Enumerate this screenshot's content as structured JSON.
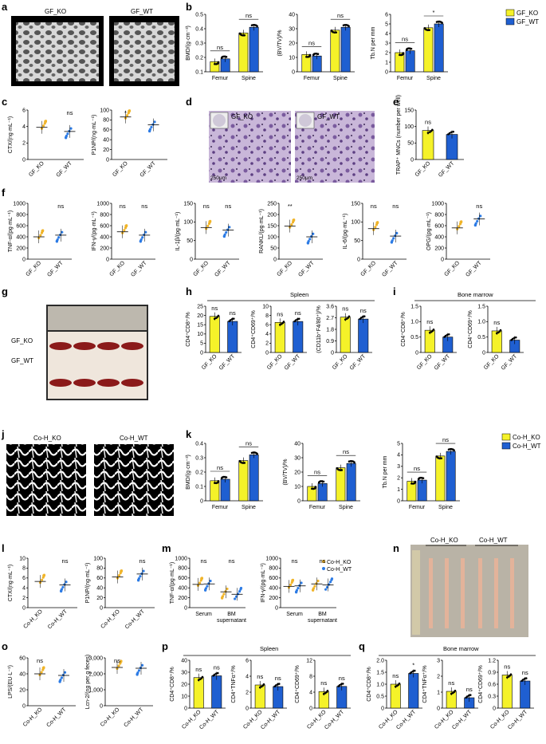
{
  "colors": {
    "ko": "#f5f229",
    "wt": "#1f5fd1",
    "ko_dot": "#f0b429",
    "wt_dot": "#2c7be5"
  },
  "panels": {
    "a": "a",
    "b": "b",
    "c": "c",
    "d": "d",
    "e": "e",
    "f": "f",
    "g": "g",
    "h": "h",
    "i": "i",
    "j": "j",
    "k": "k",
    "l": "l",
    "m": "m",
    "n": "n",
    "o": "o",
    "p": "p",
    "q": "q"
  },
  "images": {
    "a_left": "GF_KO",
    "a_right": "GF_WT",
    "d_left": "GF_KO",
    "d_right": "GF_WT",
    "d_scale_left": "250μm",
    "d_scale_right": "250μm",
    "g_row1": "GF_KO",
    "g_row2": "GF_WT",
    "j_left": "Co-H_KO",
    "j_right": "Co-H_WT",
    "n_left": "Co-H_KO",
    "n_right": "Co-H_WT"
  },
  "legends": {
    "b": [
      "GF_KO",
      "GF_WT"
    ],
    "k": [
      "Co-H_KO",
      "Co-H_WT"
    ],
    "m": [
      "Co-H_KO",
      "Co-H_WT"
    ]
  },
  "section_titles": {
    "h": "Spleen",
    "i": "Bone marrow",
    "p": "Spleen",
    "q": "Bone marrow"
  },
  "chart_data": [
    {
      "id": "b1",
      "type": "bar",
      "ylabel": "BMD/(g·cm⁻³)",
      "categories": [
        "Femur",
        "Spine"
      ],
      "ylim": [
        0.1,
        0.5
      ],
      "yticks": [
        "0.1",
        "0.2",
        "0.3",
        "0.4",
        "0.5"
      ],
      "series": [
        {
          "name": "GF_KO",
          "values": [
            0.17,
            0.37
          ]
        },
        {
          "name": "GF_WT",
          "values": [
            0.19,
            0.41
          ]
        }
      ],
      "sig": [
        "ns",
        "ns"
      ]
    },
    {
      "id": "b2",
      "type": "bar",
      "ylabel": "(BV/TV)/%",
      "categories": [
        "Femur",
        "Spine"
      ],
      "ylim": [
        0,
        40
      ],
      "yticks": [
        "0",
        "10",
        "20",
        "30",
        "40"
      ],
      "series": [
        {
          "name": "GF_KO",
          "values": [
            12,
            29
          ]
        },
        {
          "name": "GF_WT",
          "values": [
            11,
            31
          ]
        }
      ],
      "sig": [
        "ns",
        "ns"
      ]
    },
    {
      "id": "b3",
      "type": "bar",
      "ylabel": "Tb.N per mm",
      "categories": [
        "Femur",
        "Spine"
      ],
      "ylim": [
        0,
        6
      ],
      "yticks": [
        "0",
        "1",
        "2",
        "3",
        "4",
        "5",
        "6"
      ],
      "series": [
        {
          "name": "GF_KO",
          "values": [
            2.0,
            4.6
          ]
        },
        {
          "name": "GF_WT",
          "values": [
            2.2,
            5.0
          ]
        }
      ],
      "sig": [
        "ns",
        "*"
      ]
    },
    {
      "id": "c1",
      "type": "scatter",
      "ylabel": "CTX/(ng·mL⁻¹)",
      "categories": [
        "GF_KO",
        "GF_WT"
      ],
      "ylim": [
        0,
        6
      ],
      "yticks": [
        "0",
        "2",
        "4",
        "6"
      ],
      "means": [
        3.9,
        3.4
      ],
      "sig": [
        "",
        "ns"
      ]
    },
    {
      "id": "c2",
      "type": "scatter",
      "ylabel": "P1NP/(ng·mL⁻¹)",
      "categories": [
        "GF_KO",
        "GF_WT"
      ],
      "ylim": [
        0,
        100
      ],
      "yticks": [
        "0",
        "20",
        "40",
        "60",
        "80",
        "100"
      ],
      "means": [
        86,
        70
      ],
      "sig": [
        "*",
        ""
      ]
    },
    {
      "id": "e1",
      "type": "bar",
      "ylabel": "TRAP⁺ MNCs (number per well)",
      "categories": [
        "GF_KO",
        "GF_WT"
      ],
      "ylim": [
        0,
        150
      ],
      "yticks": [
        "0",
        "50",
        "100",
        "150"
      ],
      "values": [
        88,
        76
      ],
      "sig": [
        "ns",
        ""
      ]
    },
    {
      "id": "f1",
      "type": "scatter",
      "ylabel": "TNF-α/(pg·mL⁻¹)",
      "categories": [
        "GF_KO",
        "GF_WT"
      ],
      "ylim": [
        0,
        1000
      ],
      "yticks": [
        "0",
        "200",
        "400",
        "600",
        "800",
        "1000"
      ],
      "means": [
        400,
        430
      ],
      "sig": [
        "",
        "ns"
      ]
    },
    {
      "id": "f2",
      "type": "scatter",
      "ylabel": "IFN-γ/(pg·mL⁻¹)",
      "categories": [
        "GF_KO",
        "GF_WT"
      ],
      "ylim": [
        0,
        1000
      ],
      "yticks": [
        "0",
        "200",
        "400",
        "600",
        "800",
        "1000"
      ],
      "means": [
        490,
        430
      ],
      "sig": [
        "ns",
        "ns"
      ]
    },
    {
      "id": "f3",
      "type": "scatter",
      "ylabel": "IL-1β/(pg·mL⁻¹)",
      "categories": [
        "GF_KO",
        "GF_WT"
      ],
      "ylim": [
        0,
        150
      ],
      "yticks": [
        "0",
        "50",
        "100",
        "150"
      ],
      "means": [
        85,
        78
      ],
      "sig": [
        "ns",
        "ns"
      ]
    },
    {
      "id": "f4",
      "type": "scatter",
      "ylabel": "RANKL/(pg·mL⁻¹)",
      "categories": [
        "GF_KO",
        "GF_WT"
      ],
      "ylim": [
        0,
        250
      ],
      "yticks": [
        "0",
        "50",
        "100",
        "150",
        "200",
        "250"
      ],
      "means": [
        148,
        100
      ],
      "sig": [
        "**",
        ""
      ]
    },
    {
      "id": "f5",
      "type": "scatter",
      "ylabel": "IL-6/(pg·mL⁻¹)",
      "categories": [
        "GF_KO",
        "GF_WT"
      ],
      "ylim": [
        0,
        150
      ],
      "yticks": [
        "0",
        "50",
        "100",
        "150"
      ],
      "means": [
        82,
        62
      ],
      "sig": [
        "ns",
        "ns"
      ]
    },
    {
      "id": "f6",
      "type": "scatter",
      "ylabel": "OPG/(pg·mL⁻¹)",
      "categories": [
        "GF_KO",
        "GF_WT"
      ],
      "ylim": [
        0,
        1000
      ],
      "yticks": [
        "0",
        "200",
        "400",
        "600",
        "800",
        "1000"
      ],
      "means": [
        560,
        720
      ],
      "sig": [
        "",
        "ns"
      ]
    },
    {
      "id": "h1",
      "type": "bar",
      "ylabel": "CD4⁺CD8⁺/%",
      "categories": [
        "GF_KO",
        "GF_WT"
      ],
      "ylim": [
        0,
        25
      ],
      "yticks": [
        "0",
        "5",
        "10",
        "15",
        "20",
        "25"
      ],
      "values": [
        19.5,
        16.8
      ],
      "sig": [
        "ns",
        "ns"
      ]
    },
    {
      "id": "h2",
      "type": "bar",
      "ylabel": "CD4⁺CD69⁺/%",
      "categories": [
        "GF_KO",
        "GF_WT"
      ],
      "ylim": [
        0,
        10
      ],
      "yticks": [
        "0",
        "2",
        "4",
        "6",
        "8",
        "10"
      ],
      "values": [
        6.5,
        6.7
      ],
      "sig": [
        "ns",
        "ns"
      ]
    },
    {
      "id": "h3",
      "type": "bar",
      "ylabel": "(CD11b⁺F4/80⁺)/%",
      "categories": [
        "GF_KO",
        "GF_WT"
      ],
      "ylim": [
        0,
        3.6
      ],
      "yticks": [
        "0",
        "0.9",
        "1.8",
        "2.7",
        "3.6"
      ],
      "values": [
        2.75,
        2.6
      ],
      "sig": [
        "ns",
        "ns"
      ]
    },
    {
      "id": "i1",
      "type": "bar",
      "ylabel": "CD4⁺CD8⁺/%",
      "categories": [
        "GF_KO",
        "GF_WT"
      ],
      "ylim": [
        0,
        1.5
      ],
      "yticks": [
        "0",
        "0.5",
        "1.0",
        "1.5"
      ],
      "values": [
        0.72,
        0.5
      ],
      "sig": [
        "ns",
        ""
      ]
    },
    {
      "id": "i2",
      "type": "bar",
      "ylabel": "CD4⁺CD69⁺/%",
      "categories": [
        "GF_KO",
        "GF_WT"
      ],
      "ylim": [
        0,
        1.5
      ],
      "yticks": [
        "0",
        "0.5",
        "1.0",
        "1.5"
      ],
      "values": [
        0.7,
        0.4
      ],
      "sig": [
        "ns",
        ""
      ]
    },
    {
      "id": "k1",
      "type": "bar",
      "ylabel": "BMD/(g·cm⁻³)",
      "categories": [
        "Femur",
        "Spine"
      ],
      "ylim": [
        0,
        0.4
      ],
      "yticks": [
        "0",
        "0.1",
        "0.2",
        "0.3",
        "0.4"
      ],
      "series": [
        {
          "name": "Co-H_KO",
          "values": [
            0.14,
            0.28
          ]
        },
        {
          "name": "Co-H_WT",
          "values": [
            0.15,
            0.32
          ]
        }
      ],
      "sig": [
        "ns",
        "ns"
      ]
    },
    {
      "id": "k2",
      "type": "bar",
      "ylabel": "(BV/TV)/%",
      "categories": [
        "Femur",
        "Spine"
      ],
      "ylim": [
        0,
        40
      ],
      "yticks": [
        "0",
        "10",
        "20",
        "30",
        "40"
      ],
      "series": [
        {
          "name": "Co-H_KO",
          "values": [
            10,
            23
          ]
        },
        {
          "name": "Co-H_WT",
          "values": [
            12,
            26
          ]
        }
      ],
      "sig": [
        "ns",
        "ns"
      ]
    },
    {
      "id": "k3",
      "type": "bar",
      "ylabel": "Tb.N per mm",
      "categories": [
        "Femur",
        "Spine"
      ],
      "ylim": [
        0,
        5
      ],
      "yticks": [
        "0",
        "1",
        "2",
        "3",
        "4",
        "5"
      ],
      "series": [
        {
          "name": "Co-H_KO",
          "values": [
            1.7,
            3.9
          ]
        },
        {
          "name": "Co-H_WT",
          "values": [
            1.8,
            4.3
          ]
        }
      ],
      "sig": [
        "ns",
        "ns"
      ]
    },
    {
      "id": "l1",
      "type": "scatter",
      "ylabel": "CTX/(ng·mL⁻¹)",
      "categories": [
        "Co-H_KO",
        "Co-H_WT"
      ],
      "ylim": [
        0,
        10
      ],
      "yticks": [
        "0",
        "2",
        "4",
        "6",
        "8",
        "10"
      ],
      "means": [
        5.3,
        4.6
      ],
      "sig": [
        "",
        "ns"
      ]
    },
    {
      "id": "l2",
      "type": "scatter",
      "ylabel": "P1NP/(ng·mL⁻¹)",
      "categories": [
        "Co-H_KO",
        "Co-H_WT"
      ],
      "ylim": [
        0,
        100
      ],
      "yticks": [
        "0",
        "20",
        "40",
        "60",
        "80",
        "100"
      ],
      "means": [
        62,
        68
      ],
      "sig": [
        "",
        "ns"
      ]
    },
    {
      "id": "m1",
      "type": "scatter",
      "ylabel": "TNF-α/(pg·mL⁻¹)",
      "categories": [
        "Serum",
        "BM supernatant"
      ],
      "ylim": [
        0,
        1000
      ],
      "yticks": [
        "0",
        "200",
        "400",
        "600",
        "800",
        "1000"
      ],
      "means": [
        [
          470,
          480
        ],
        [
          320,
          270
        ]
      ],
      "sig": [
        "ns",
        "ns"
      ]
    },
    {
      "id": "m2",
      "type": "scatter",
      "ylabel": "IFN-γ/(pg·mL⁻¹)",
      "categories": [
        "Serum",
        "BM supernatant"
      ],
      "ylim": [
        0,
        1000
      ],
      "yticks": [
        "0",
        "200",
        "400",
        "600",
        "800",
        "1000"
      ],
      "means": [
        [
          430,
          440
        ],
        [
          480,
          460
        ]
      ],
      "sig": [
        "ns",
        "ns"
      ]
    },
    {
      "id": "o1",
      "type": "scatter",
      "ylabel": "LPS/(EU·L⁻¹)",
      "categories": [
        "Co-H_KO",
        "Co-H_WT"
      ],
      "ylim": [
        0,
        60
      ],
      "yticks": [
        "0",
        "20",
        "40",
        "60"
      ],
      "means": [
        40,
        38
      ],
      "sig": [
        "ns",
        ""
      ]
    },
    {
      "id": "o2",
      "type": "scatter",
      "ylabel": "Lcn-2/(ng per g feces)",
      "categories": [
        "Co-H_KO",
        "Co-H_WT"
      ],
      "ylim": [
        0,
        3000
      ],
      "yticks": [
        "0",
        "1,000",
        "2,000",
        "3,000"
      ],
      "means": [
        2400,
        2350
      ],
      "sig": [
        "ns",
        ""
      ]
    },
    {
      "id": "p1",
      "type": "bar",
      "ylabel": "CD4⁺CD8⁺/%",
      "categories": [
        "Co-H_KO",
        "Co-H_WT"
      ],
      "ylim": [
        0,
        40
      ],
      "yticks": [
        "0",
        "10",
        "20",
        "30",
        "40"
      ],
      "values": [
        25.5,
        27
      ],
      "sig": [
        "ns",
        "ns"
      ]
    },
    {
      "id": "p2",
      "type": "bar",
      "ylabel": "CD4⁺TNFα⁺/%",
      "categories": [
        "Co-H_KO",
        "Co-H_WT"
      ],
      "ylim": [
        0,
        6
      ],
      "yticks": [
        "0",
        "2",
        "4",
        "6"
      ],
      "values": [
        2.9,
        2.7
      ],
      "sig": [
        "ns",
        "ns"
      ]
    },
    {
      "id": "p3",
      "type": "bar",
      "ylabel": "CD4⁺CD69⁺/%",
      "categories": [
        "Co-H_KO",
        "Co-H_WT"
      ],
      "ylim": [
        0,
        15
      ],
      "yticks": [
        "0",
        "4",
        "8",
        "12"
      ],
      "values": [
        5.2,
        6.8
      ],
      "sig": [
        "ns",
        "ns"
      ]
    },
    {
      "id": "q1",
      "type": "bar",
      "ylabel": "CD4⁺CD8⁺/%",
      "categories": [
        "Co-H_KO",
        "Co-H_WT"
      ],
      "ylim": [
        0,
        2.0
      ],
      "yticks": [
        "0",
        "0.5",
        "1.0",
        "1.5",
        "2.0"
      ],
      "values": [
        1.0,
        1.45
      ],
      "sig": [
        "ns",
        "*"
      ]
    },
    {
      "id": "q2",
      "type": "bar",
      "ylabel": "CD4⁺TNFα⁺/%",
      "categories": [
        "Co-H_KO",
        "Co-H_WT"
      ],
      "ylim": [
        0,
        3
      ],
      "yticks": [
        "0",
        "1",
        "2",
        "3"
      ],
      "values": [
        1.05,
        0.65
      ],
      "sig": [
        "ns",
        "ns"
      ]
    },
    {
      "id": "q3",
      "type": "bar",
      "ylabel": "CD4⁺CD69⁺/%",
      "categories": [
        "Co-H_KO",
        "Co-H_WT"
      ],
      "ylim": [
        0,
        1.2
      ],
      "yticks": [
        "0",
        "0.3",
        "0.6",
        "0.9",
        "1.2"
      ],
      "values": [
        0.83,
        0.68
      ],
      "sig": [
        "ns",
        "ns"
      ]
    }
  ]
}
